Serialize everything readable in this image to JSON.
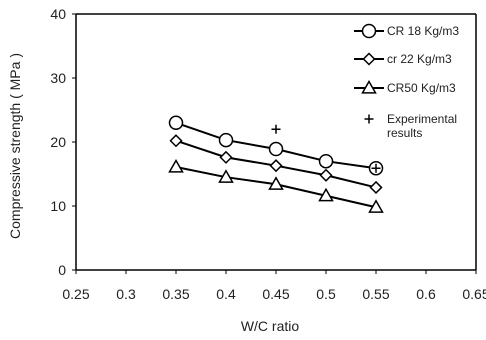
{
  "chart_data": {
    "type": "line",
    "xlabel": "W/C ratio",
    "ylabel": "Compressive strength ( MPa )",
    "xlim": [
      0.25,
      0.65
    ],
    "ylim": [
      0,
      40
    ],
    "xticks": [
      "0.25",
      "0.3",
      "0.35",
      "0.4",
      "0.45",
      "0.5",
      "0.55",
      "0.6",
      "0.65"
    ],
    "yticks": [
      "0",
      "10",
      "20",
      "30",
      "40"
    ],
    "grid": false,
    "legend_position": "top-right",
    "x": [
      0.35,
      0.4,
      0.45,
      0.5,
      0.55
    ],
    "series": [
      {
        "name": "CR 18 Kg/m3",
        "marker": "circle",
        "values": [
          23.0,
          20.3,
          18.9,
          17.0,
          15.9
        ]
      },
      {
        "name": "cr 22 Kg/m3",
        "marker": "diamond",
        "values": [
          20.2,
          17.6,
          16.3,
          14.8,
          12.9
        ]
      },
      {
        "name": "CR50 Kg/m3",
        "marker": "triangle",
        "values": [
          16.1,
          14.5,
          13.4,
          11.6,
          9.8
        ]
      }
    ],
    "experimental": {
      "name": "Experimental results",
      "marker": "plus",
      "x": [
        0.45,
        0.55
      ],
      "y": [
        22.0,
        15.9
      ]
    }
  }
}
